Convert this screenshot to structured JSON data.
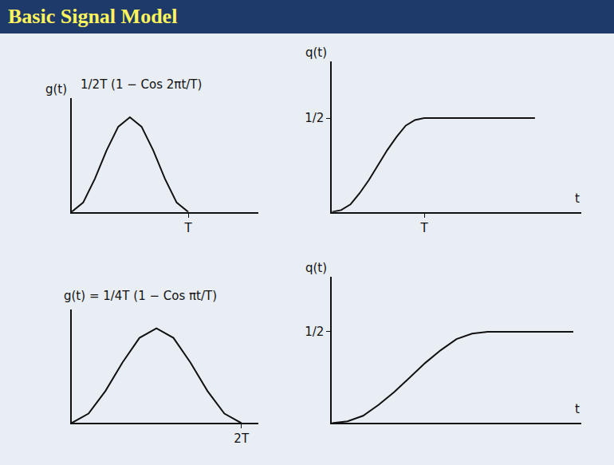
{
  "header": {
    "title": "Basic Signal Model"
  },
  "chart_data": [
    {
      "type": "line",
      "title": "1/2T (1 − Cos 2πt/T)",
      "y_label": "g(t)",
      "color": "#111111",
      "grid": false,
      "tick_labels": "x",
      "x": [
        0,
        0.1,
        0.2,
        0.3,
        0.4,
        0.5,
        0.6,
        0.7,
        0.8,
        0.9,
        1.0
      ],
      "values": [
        0,
        0.1,
        0.35,
        0.65,
        0.9,
        1.0,
        0.9,
        0.65,
        0.35,
        0.1,
        0
      ],
      "xlim": [
        0,
        1.6
      ],
      "ylim": [
        0,
        1.2
      ],
      "xticks": [
        {
          "value": 1,
          "label": "T"
        }
      ],
      "yticks": []
    },
    {
      "type": "line",
      "y_label": "q(t)",
      "x_label": "t",
      "color": "#111111",
      "grid": false,
      "x": [
        0,
        0.1,
        0.2,
        0.3,
        0.4,
        0.5,
        0.6,
        0.7,
        0.8,
        0.9,
        1.0,
        1.5,
        2.2
      ],
      "values": [
        0,
        0.01,
        0.04,
        0.1,
        0.17,
        0.25,
        0.33,
        0.4,
        0.46,
        0.49,
        0.5,
        0.5,
        0.5
      ],
      "xlim": [
        0,
        2.7
      ],
      "ylim": [
        0,
        0.8
      ],
      "xticks": [
        {
          "value": 1,
          "label": "T"
        }
      ],
      "yticks": [
        {
          "value": 0.5,
          "label": "1/2"
        }
      ]
    },
    {
      "type": "line",
      "title": "g(t) = 1/4T (1 − Cos πt/T)",
      "color": "#111111",
      "grid": false,
      "tick_labels": "x",
      "x": [
        0,
        0.2,
        0.4,
        0.6,
        0.8,
        1.0,
        1.2,
        1.4,
        1.6,
        1.8,
        2.0
      ],
      "values": [
        0,
        0.05,
        0.17,
        0.32,
        0.45,
        0.5,
        0.45,
        0.32,
        0.17,
        0.05,
        0
      ],
      "xlim": [
        0,
        2.2
      ],
      "ylim": [
        0,
        0.6
      ],
      "xticks": [
        {
          "value": 2,
          "label": "2T"
        }
      ],
      "yticks": []
    },
    {
      "type": "line",
      "y_label": "q(t)",
      "x_label": "t",
      "color": "#111111",
      "grid": false,
      "x": [
        0,
        0.2,
        0.4,
        0.6,
        0.8,
        1.0,
        1.2,
        1.4,
        1.6,
        1.8,
        2.0,
        2.5,
        3.1
      ],
      "values": [
        0,
        0.01,
        0.04,
        0.1,
        0.17,
        0.25,
        0.33,
        0.4,
        0.46,
        0.49,
        0.5,
        0.5,
        0.5
      ],
      "xlim": [
        0,
        3.2
      ],
      "ylim": [
        0,
        0.8
      ],
      "xticks": [],
      "yticks": [
        {
          "value": 0.5,
          "label": "1/2"
        }
      ]
    }
  ]
}
